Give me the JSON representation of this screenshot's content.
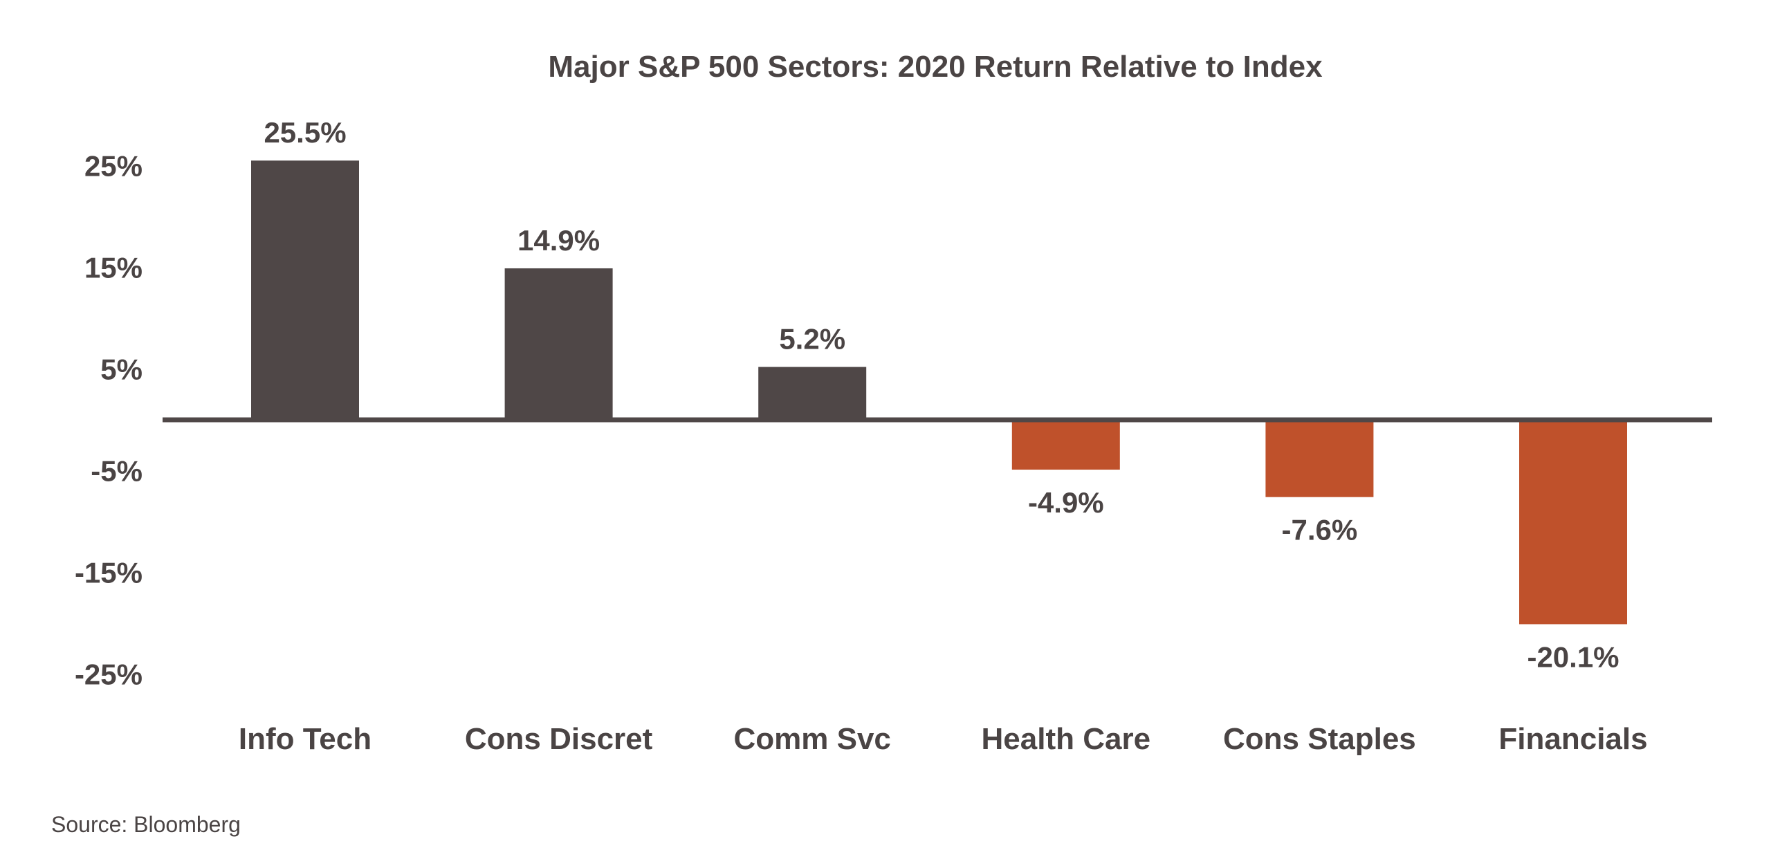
{
  "source": "Source: Bloomberg",
  "colors": {
    "positive": "#4f4747",
    "negative": "#bf512b",
    "text": "#4a4444",
    "axis": "#4f4747",
    "background": "#ffffff"
  },
  "chart_data": {
    "type": "bar",
    "title": "Major S&P 500 Sectors: 2020 Return Relative to Index",
    "xlabel": "",
    "ylabel": "",
    "categories": [
      "Info Tech",
      "Cons Discret",
      "Comm Svc",
      "Health Care",
      "Cons Staples",
      "Financials"
    ],
    "values": [
      25.5,
      14.9,
      5.2,
      -4.9,
      -7.6,
      -20.1
    ],
    "data_labels": [
      "25.5%",
      "14.9%",
      "5.2%",
      "-4.9%",
      "-7.6%",
      "-20.1%"
    ],
    "y_ticks": [
      25,
      15,
      5,
      -5,
      -15,
      -25
    ],
    "y_tick_labels": [
      "25%",
      "15%",
      "5%",
      "-5%",
      "-15%",
      "-25%"
    ],
    "ylim": [
      -25,
      25
    ],
    "grid": false,
    "legend": "none"
  }
}
